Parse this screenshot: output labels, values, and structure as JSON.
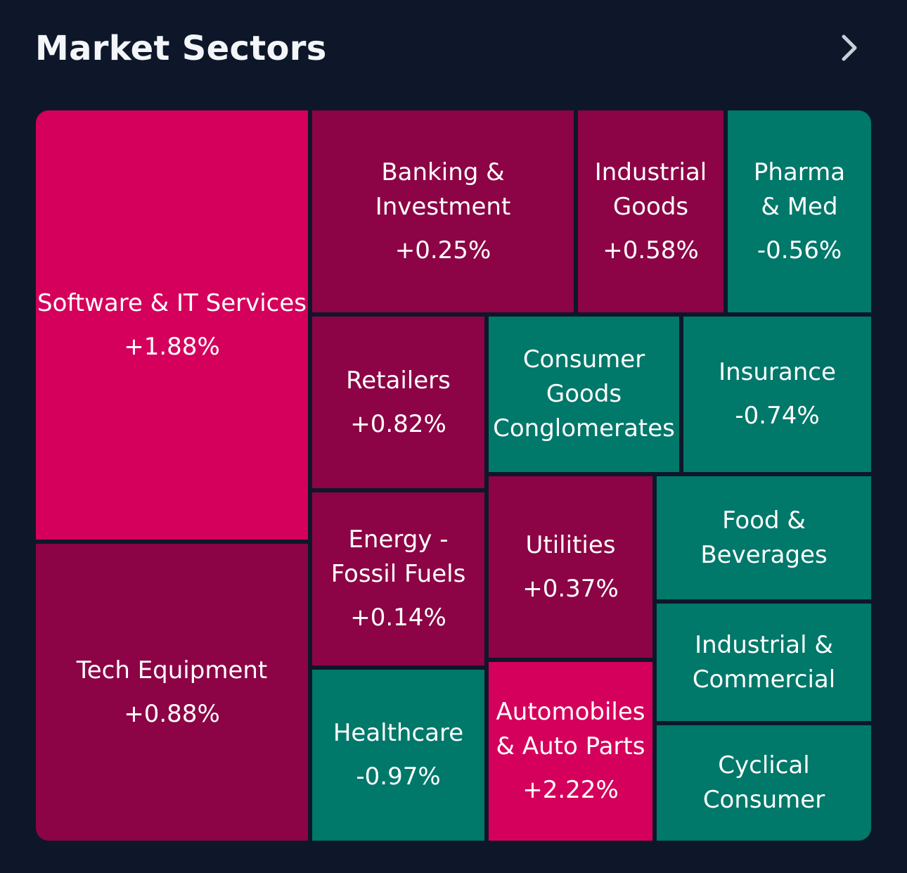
{
  "header": {
    "title": "Market Sectors",
    "chevron_icon": "chevron-right-icon"
  },
  "colors": {
    "background": "#0e172a",
    "strong_up": "#d4005b",
    "up": "#8c0445",
    "down": "#00786a"
  },
  "sectors": [
    {
      "id": "software",
      "label": "Software & IT Services",
      "change": "+1.88%",
      "tone": "strong_up"
    },
    {
      "id": "tech-equipment",
      "label": "Tech Equipment",
      "change": "+0.88%",
      "tone": "up"
    },
    {
      "id": "banking",
      "label": "Banking &\nInvestment",
      "change": "+0.25%",
      "tone": "up"
    },
    {
      "id": "industrial-goods",
      "label": "Industrial\nGoods",
      "change": "+0.58%",
      "tone": "up"
    },
    {
      "id": "pharma",
      "label": "Pharma\n& Med",
      "change": "-0.56%",
      "tone": "down"
    },
    {
      "id": "retailers",
      "label": "Retailers",
      "change": "+0.82%",
      "tone": "up"
    },
    {
      "id": "consumer-goods",
      "label": "Consumer\nGoods\nConglomerates",
      "change": "",
      "tone": "down"
    },
    {
      "id": "insurance",
      "label": "Insurance",
      "change": "-0.74%",
      "tone": "down"
    },
    {
      "id": "energy",
      "label": "Energy -\nFossil Fuels",
      "change": "+0.14%",
      "tone": "up"
    },
    {
      "id": "utilities",
      "label": "Utilities",
      "change": "+0.37%",
      "tone": "up"
    },
    {
      "id": "food",
      "label": "Food &\nBeverages",
      "change": "",
      "tone": "down"
    },
    {
      "id": "industrial-commercial",
      "label": "Industrial &\nCommercial",
      "change": "",
      "tone": "down"
    },
    {
      "id": "healthcare",
      "label": "Healthcare",
      "change": "-0.97%",
      "tone": "down"
    },
    {
      "id": "automobiles",
      "label": "Automobiles\n& Auto Parts",
      "change": "+2.22%",
      "tone": "strong_up"
    },
    {
      "id": "cyclical",
      "label": "Cyclical\nConsumer",
      "change": "",
      "tone": "down"
    }
  ]
}
